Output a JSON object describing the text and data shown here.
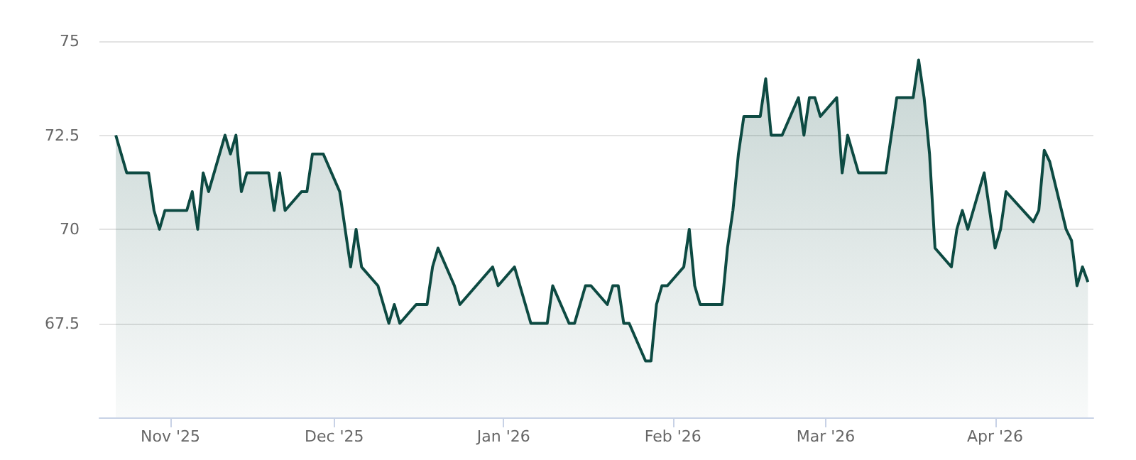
{
  "chart_data": {
    "type": "area",
    "grid": "y",
    "xlim": [
      "2025-10-19",
      "2026-04-19"
    ],
    "xticks": [
      {
        "value": "2025-11-01",
        "label": "Nov '25"
      },
      {
        "value": "2025-12-01",
        "label": "Dec '25"
      },
      {
        "value": "2026-01-01",
        "label": "Jan '26"
      },
      {
        "value": "2026-02-01",
        "label": "Feb '26"
      },
      {
        "value": "2026-03-01",
        "label": "Mar '26"
      },
      {
        "value": "2026-04-01",
        "label": "Apr '26"
      }
    ],
    "ylim": [
      65,
      75
    ],
    "yticks": [
      67.5,
      70,
      72.5,
      75
    ],
    "series": [
      {
        "color": "#0d4a42",
        "x": [
          "2025-10-22",
          "2025-10-24",
          "2025-10-28",
          "2025-10-29",
          "2025-10-30",
          "2025-10-31",
          "2025-11-04",
          "2025-11-05",
          "2025-11-06",
          "2025-11-07",
          "2025-11-08",
          "2025-11-11",
          "2025-11-12",
          "2025-11-13",
          "2025-11-14",
          "2025-11-15",
          "2025-11-19",
          "2025-11-20",
          "2025-11-21",
          "2025-11-22",
          "2025-11-25",
          "2025-11-26",
          "2025-11-27",
          "2025-11-29",
          "2025-12-02",
          "2025-12-04",
          "2025-12-05",
          "2025-12-06",
          "2025-12-09",
          "2025-12-11",
          "2025-12-12",
          "2025-12-13",
          "2025-12-16",
          "2025-12-18",
          "2025-12-19",
          "2025-12-20",
          "2025-12-23",
          "2025-12-24",
          "2025-12-30",
          "2025-12-31",
          "2026-01-03",
          "2026-01-06",
          "2026-01-09",
          "2026-01-10",
          "2026-01-13",
          "2026-01-14",
          "2026-01-16",
          "2026-01-17",
          "2026-01-20",
          "2026-01-21",
          "2026-01-22",
          "2026-01-23",
          "2026-01-24",
          "2026-01-27",
          "2026-01-28",
          "2026-01-29",
          "2026-01-30",
          "2026-01-31",
          "2026-02-03",
          "2026-02-04",
          "2026-02-05",
          "2026-02-06",
          "2026-02-10",
          "2026-02-11",
          "2026-02-12",
          "2026-02-13",
          "2026-02-14",
          "2026-02-17",
          "2026-02-18",
          "2026-02-19",
          "2026-02-21",
          "2026-02-24",
          "2026-02-25",
          "2026-02-26",
          "2026-02-27",
          "2026-02-28",
          "2026-03-03",
          "2026-03-04",
          "2026-03-05",
          "2026-03-07",
          "2026-03-12",
          "2026-03-14",
          "2026-03-17",
          "2026-03-18",
          "2026-03-19",
          "2026-03-20",
          "2026-03-21",
          "2026-03-24",
          "2026-03-25",
          "2026-03-26",
          "2026-03-27",
          "2026-03-28",
          "2026-03-30",
          "2026-04-01",
          "2026-04-02",
          "2026-04-03",
          "2026-04-08",
          "2026-04-09",
          "2026-04-10",
          "2026-04-11",
          "2026-04-14",
          "2026-04-15",
          "2026-04-16",
          "2026-04-17",
          "2026-04-18"
        ],
        "values": [
          72.5,
          71.5,
          71.5,
          70.5,
          70,
          70.5,
          70.5,
          71,
          70,
          71.5,
          71,
          72.5,
          72,
          72.5,
          71,
          71.5,
          71.5,
          70.5,
          71.5,
          70.5,
          71,
          71,
          72,
          72,
          71,
          69,
          70,
          69,
          68.5,
          67.5,
          68,
          67.5,
          68,
          68,
          69,
          69.5,
          68.5,
          68,
          69,
          68.5,
          69,
          67.5,
          67.5,
          68.5,
          67.5,
          67.5,
          68.5,
          68.5,
          68,
          68.5,
          68.5,
          67.5,
          67.5,
          66.5,
          66.5,
          68,
          68.5,
          68.5,
          69,
          70,
          68.5,
          68,
          68,
          69.5,
          70.5,
          72,
          73,
          73,
          74,
          72.5,
          72.5,
          73.5,
          72.5,
          73.5,
          73.5,
          73,
          73.5,
          71.5,
          72.5,
          71.5,
          71.5,
          73.5,
          73.5,
          74.5,
          73.5,
          72,
          69.5,
          69,
          70,
          70.5,
          70,
          70.5,
          71.5,
          69.5,
          70,
          71,
          70.2,
          70.5,
          72.1,
          71.8,
          70,
          69.7,
          68.5,
          69,
          68.6
        ]
      }
    ]
  }
}
